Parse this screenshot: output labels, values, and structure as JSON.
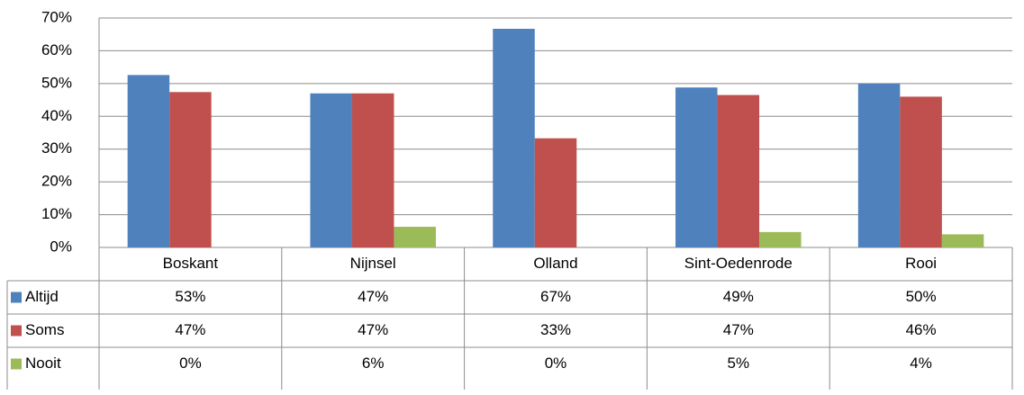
{
  "chart_data": {
    "type": "bar",
    "categories": [
      "Boskant",
      "Nijnsel",
      "Olland",
      "Sint-Oedenrode",
      "Rooi"
    ],
    "series": [
      {
        "name": "Altijd",
        "color": "#4f81bd",
        "values": [
          52.6,
          47,
          66.7,
          48.8,
          50
        ],
        "value_labels": [
          "53%",
          "47%",
          "67%",
          "49%",
          "50%"
        ]
      },
      {
        "name": "Soms",
        "color": "#c0504d",
        "values": [
          47.4,
          47,
          33.3,
          46.5,
          46
        ],
        "value_labels": [
          "47%",
          "47%",
          "33%",
          "47%",
          "46%"
        ]
      },
      {
        "name": "Nooit",
        "color": "#9bbb59",
        "values": [
          0,
          6.3,
          0,
          4.7,
          4
        ],
        "value_labels": [
          "0%",
          "6%",
          "0%",
          "5%",
          "4%"
        ]
      }
    ],
    "ylim": [
      0,
      70
    ],
    "yticks": [
      {
        "value": 0,
        "label": "0%"
      },
      {
        "value": 10,
        "label": "10%"
      },
      {
        "value": 20,
        "label": "20%"
      },
      {
        "value": 30,
        "label": "30%"
      },
      {
        "value": 40,
        "label": "40%"
      },
      {
        "value": 50,
        "label": "50%"
      },
      {
        "value": 60,
        "label": "60%"
      },
      {
        "value": 70,
        "label": "70%"
      }
    ],
    "grid": true
  }
}
